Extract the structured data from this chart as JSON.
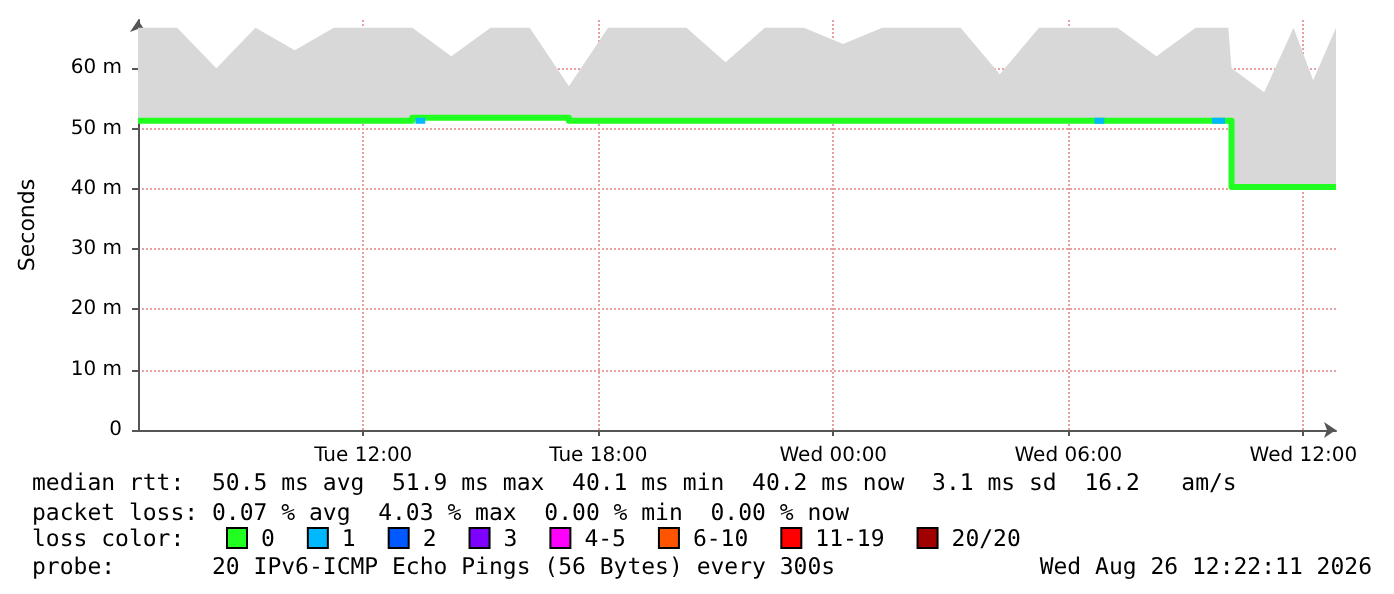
{
  "chart_data": {
    "type": "line",
    "ylabel": "Seconds",
    "legend_title": "loss color:",
    "x": [
      "2026-08-25T06:15",
      "2026-08-25T07:15",
      "2026-08-25T08:15",
      "2026-08-25T09:15",
      "2026-08-25T10:15",
      "2026-08-25T11:15",
      "2026-08-25T12:15",
      "2026-08-25T13:15",
      "2026-08-25T14:15",
      "2026-08-25T15:15",
      "2026-08-25T16:15",
      "2026-08-25T17:15",
      "2026-08-25T18:15",
      "2026-08-25T19:15",
      "2026-08-25T20:15",
      "2026-08-25T21:15",
      "2026-08-25T22:15",
      "2026-08-25T23:15",
      "2026-08-26T00:15",
      "2026-08-26T01:15",
      "2026-08-26T02:15",
      "2026-08-26T03:15",
      "2026-08-26T04:15",
      "2026-08-26T05:15",
      "2026-08-26T06:15",
      "2026-08-26T07:15",
      "2026-08-26T08:15",
      "2026-08-26T09:15",
      "2026-08-26T10:05",
      "2026-08-26T10:10",
      "2026-08-26T11:00",
      "2026-08-26T11:45",
      "2026-08-26T12:15",
      "2026-08-26T12:50"
    ],
    "series": [
      {
        "name": "0",
        "color": "#20ff20",
        "values": [
          51.3,
          51.3,
          51.3,
          51.3,
          51.3,
          51.3,
          51.3,
          51.8,
          51.8,
          51.8,
          51.8,
          51.3,
          51.3,
          51.3,
          51.3,
          51.3,
          51.3,
          51.3,
          51.3,
          51.3,
          51.3,
          51.3,
          51.3,
          51.3,
          51.3,
          51.3,
          51.3,
          51.3,
          51.3,
          40.3,
          40.3,
          40.3,
          40.3,
          40.3
        ],
        "lower": [
          51.3,
          51.3,
          51.3,
          51.3,
          51.3,
          51.3,
          51.3,
          51.8,
          51.8,
          51.8,
          51.8,
          51.3,
          51.3,
          51.3,
          51.3,
          51.3,
          51.3,
          51.3,
          51.3,
          51.3,
          51.3,
          51.3,
          51.3,
          51.3,
          51.3,
          51.3,
          51.3,
          51.3,
          51.3,
          40.3,
          40.3,
          40.3,
          40.3,
          40.3
        ],
        "upper": [
          66.7,
          66.7,
          60,
          66.7,
          63,
          66.7,
          66.7,
          66.7,
          62,
          66.7,
          66.7,
          57,
          66.7,
          66.7,
          66.7,
          61,
          66.7,
          66.7,
          64,
          66.7,
          66.7,
          66.7,
          59,
          66.7,
          66.7,
          66.7,
          62,
          66.7,
          66.7,
          60,
          56,
          66.7,
          58,
          66.7
        ]
      },
      {
        "name": "1",
        "color": "#00b8ff",
        "x": [
          "2026-08-25T13:20",
          "2026-08-25T13:35",
          "2026-08-25T13:36",
          "2026-08-26T06:40",
          "2026-08-26T06:55",
          "2026-08-26T06:56",
          "2026-08-26T09:40",
          "2026-08-26T10:00"
        ],
        "values": [
          51.3,
          51.3,
          null,
          51.3,
          51.3,
          null,
          51.3,
          51.3
        ]
      },
      {
        "name": "2",
        "color": "#0059ff",
        "values": [
          null,
          null,
          null,
          null,
          null,
          null,
          null,
          null,
          null,
          null,
          null,
          null,
          null,
          null,
          null,
          null,
          null,
          null,
          null,
          null,
          null,
          null,
          null,
          null,
          null,
          null,
          null,
          null,
          null,
          null,
          null,
          null,
          null,
          null
        ]
      },
      {
        "name": "3",
        "color": "#7e00ff",
        "values": [
          null,
          null,
          null,
          null,
          null,
          null,
          null,
          null,
          null,
          null,
          null,
          null,
          null,
          null,
          null,
          null,
          null,
          null,
          null,
          null,
          null,
          null,
          null,
          null,
          null,
          null,
          null,
          null,
          null,
          null,
          null,
          null,
          null,
          null
        ]
      },
      {
        "name": "4-5",
        "color": "#ff00ff",
        "values": [
          null,
          null,
          null,
          null,
          null,
          null,
          null,
          null,
          null,
          null,
          null,
          null,
          null,
          null,
          null,
          null,
          null,
          null,
          null,
          null,
          null,
          null,
          null,
          null,
          null,
          null,
          null,
          null,
          null,
          null,
          null,
          null,
          null,
          null
        ]
      },
      {
        "name": "6-10",
        "color": "#ff5500",
        "values": [
          null,
          null,
          null,
          null,
          null,
          null,
          null,
          null,
          null,
          null,
          null,
          null,
          null,
          null,
          null,
          null,
          null,
          null,
          null,
          null,
          null,
          null,
          null,
          null,
          null,
          null,
          null,
          null,
          null,
          null,
          null,
          null,
          null,
          null
        ]
      },
      {
        "name": "11-19",
        "color": "#ff0000",
        "values": [
          null,
          null,
          null,
          null,
          null,
          null,
          null,
          null,
          null,
          null,
          null,
          null,
          null,
          null,
          null,
          null,
          null,
          null,
          null,
          null,
          null,
          null,
          null,
          null,
          null,
          null,
          null,
          null,
          null,
          null,
          null,
          null,
          null,
          null
        ]
      },
      {
        "name": "20/20",
        "color": "#a10000",
        "values": [
          null,
          null,
          null,
          null,
          null,
          null,
          null,
          null,
          null,
          null,
          null,
          null,
          null,
          null,
          null,
          null,
          null,
          null,
          null,
          null,
          null,
          null,
          null,
          null,
          null,
          null,
          null,
          null,
          null,
          null,
          null,
          null,
          null,
          null
        ]
      }
    ],
    "xlim": [
      "2026-08-25T06:15",
      "2026-08-26T12:50"
    ],
    "xticks": [
      {
        "value": "2026-08-25T12:00",
        "label": "Tue 12:00"
      },
      {
        "value": "2026-08-25T18:00",
        "label": "Tue 18:00"
      },
      {
        "value": "2026-08-26T00:00",
        "label": "Wed 00:00"
      },
      {
        "value": "2026-08-26T06:00",
        "label": "Wed 06:00"
      },
      {
        "value": "2026-08-26T12:00",
        "label": "Wed 12:00"
      }
    ],
    "ylim": [
      0,
      68
    ],
    "yticks": [
      0,
      {
        "value": 10,
        "label": "10 m"
      },
      {
        "value": 20,
        "label": "20 m"
      },
      {
        "value": 30,
        "label": "30 m"
      },
      {
        "value": 40,
        "label": "40 m"
      },
      {
        "value": 50,
        "label": "50 m"
      },
      {
        "value": 60,
        "label": "60 m"
      }
    ],
    "grid": true,
    "legend": "bottom",
    "annotations": [
      "median rtt:  50.5 ms avg  51.9 ms max  40.1 ms min  40.2 ms now  3.1 ms sd  16.2   am/s",
      "packet loss: 0.07 % avg  4.03 % max  0.00 % min  0.00 % now",
      "probe:       20 IPv6-ICMP Echo Pings (56 Bytes) every 300s",
      "Wed Aug 26 12:22:11 2026"
    ]
  }
}
